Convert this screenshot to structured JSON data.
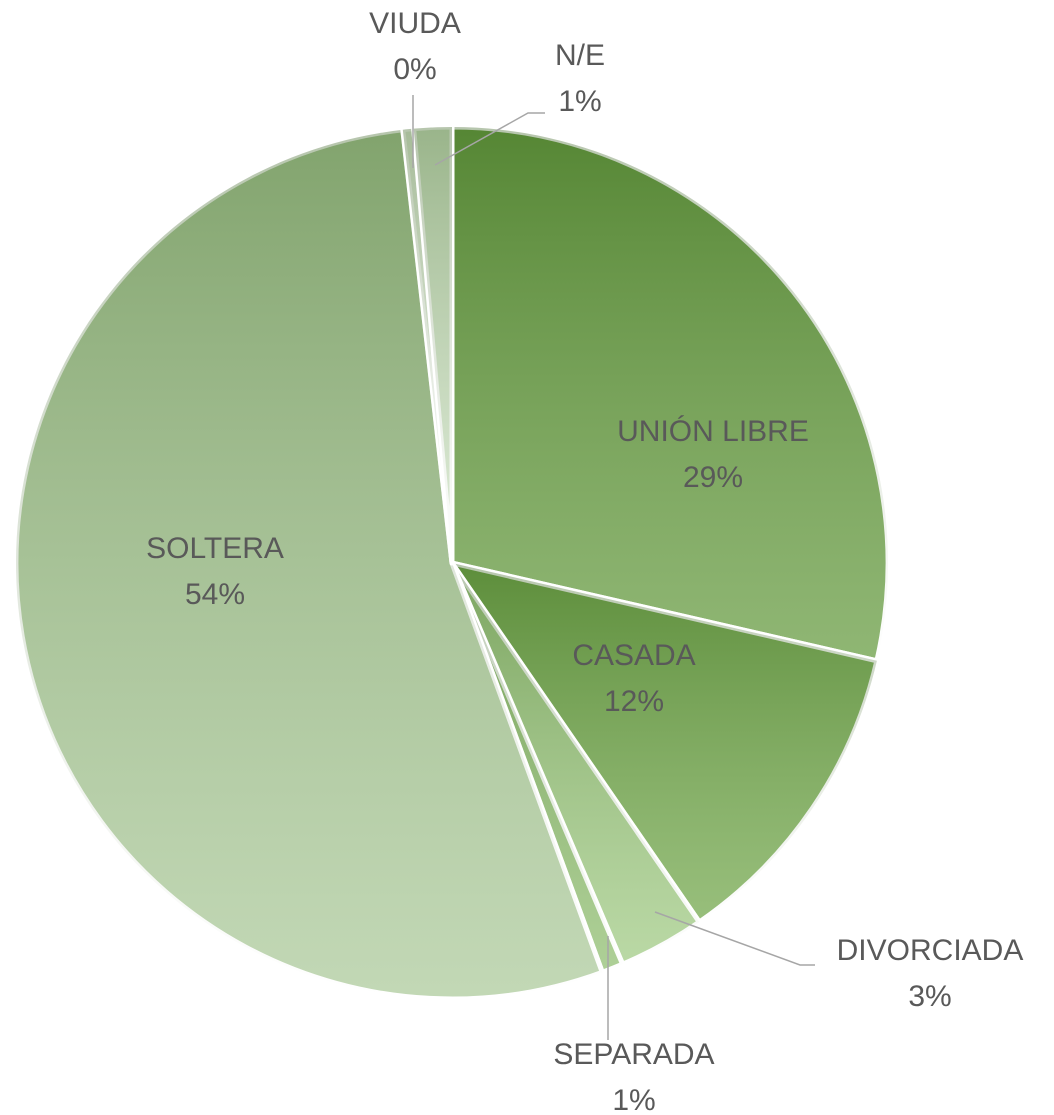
{
  "chart_data": {
    "type": "pie",
    "categories": [
      "UNIÓN LIBRE",
      "CASADA",
      "DIVORCIADA",
      "SEPARADA",
      "SOLTERA",
      "VIUDA",
      "N/E"
    ],
    "values": [
      28.6,
      11.8,
      3.2,
      0.8,
      53.8,
      0.4,
      1.4
    ],
    "value_labels": [
      "29%",
      "12%",
      "3%",
      "1%",
      "54%",
      "0%",
      "1%"
    ],
    "colors": [
      "#6a9e45",
      "#75a94f",
      "#a3cc87",
      "#93c074",
      "#aecb9d",
      "#e6f0e0",
      "#d3e5ca"
    ]
  }
}
